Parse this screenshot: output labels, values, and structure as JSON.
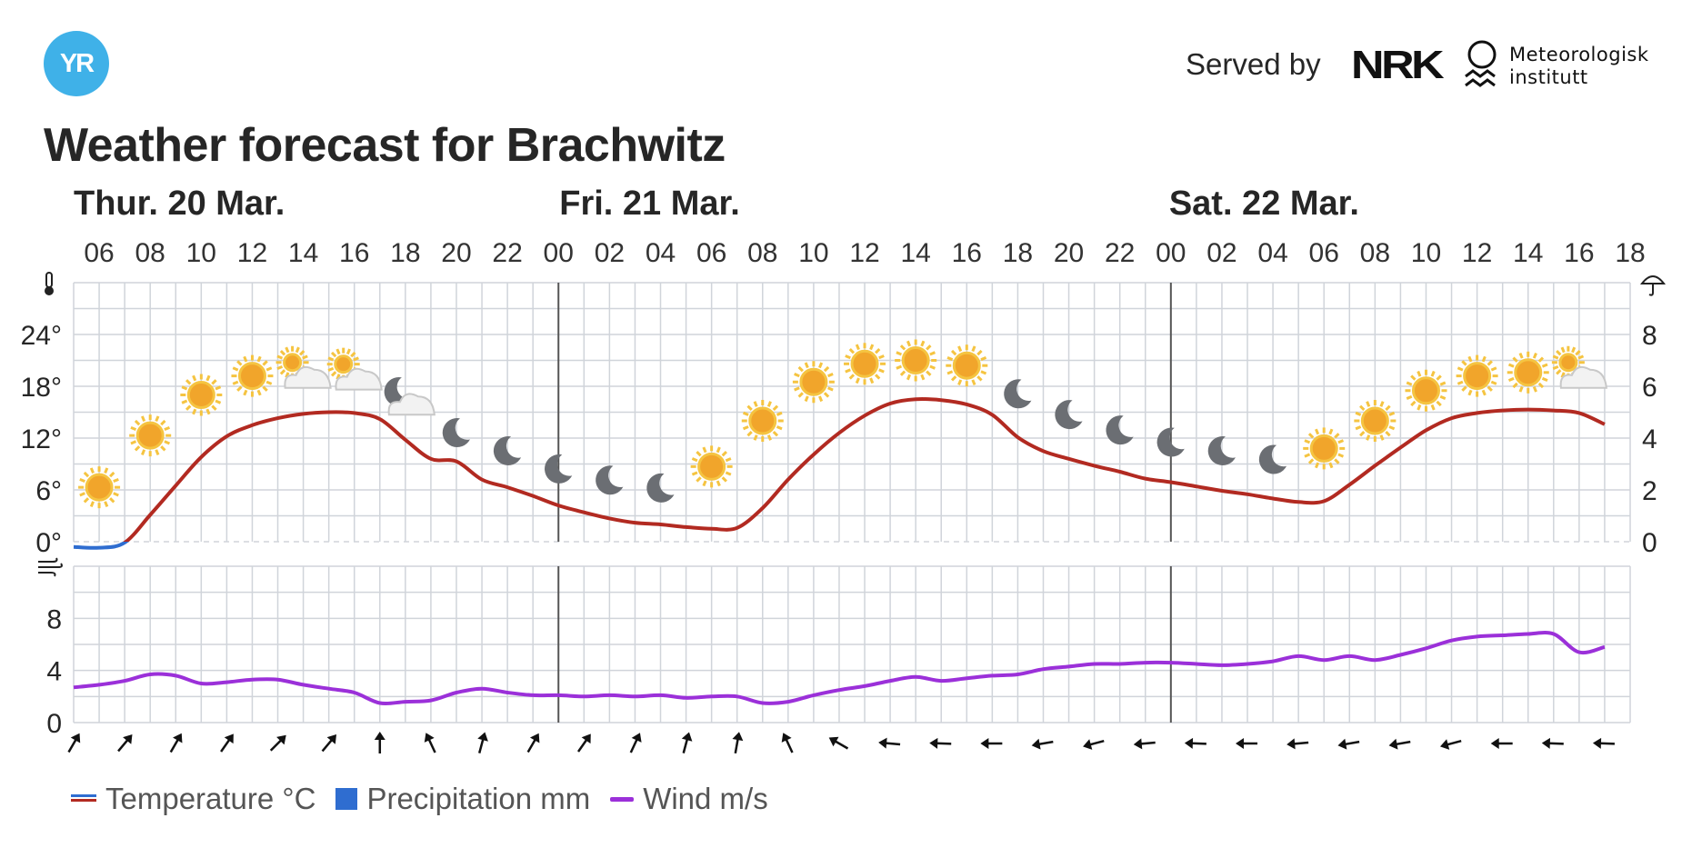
{
  "header": {
    "logo_text": "YR",
    "served_by": "Served by",
    "nrk_logo_text": "NRK",
    "met_logo_line1": "Meteorologisk",
    "met_logo_line2": "institutt"
  },
  "title": "Weather forecast for Brachwitz",
  "legend": {
    "temperature": "Temperature °C",
    "precipitation": "Precipitation mm",
    "wind": "Wind m/s"
  },
  "colors": {
    "temperature_warm": "#b22a21",
    "temperature_cold": "#2f6dd0",
    "precipitation": "#2f6dd0",
    "wind": "#9b30d9",
    "grid": "#d0d4da",
    "day_divider": "#555555"
  },
  "chart_data": {
    "type": "line",
    "hours_start": "Thur. 20 Mar. 05:00",
    "hours": 62,
    "days": [
      {
        "label": "Thur. 20 Mar.",
        "hour": 5
      },
      {
        "label": "Fri. 21 Mar.",
        "hour": 24
      },
      {
        "label": "Sat. 22 Mar.",
        "hour": 48
      }
    ],
    "x_tick_labels": [
      "06",
      "08",
      "10",
      "12",
      "14",
      "16",
      "18",
      "20",
      "22",
      "00",
      "02",
      "04",
      "06",
      "08",
      "10",
      "12",
      "14",
      "16",
      "18",
      "20",
      "22",
      "00",
      "02",
      "04",
      "06",
      "08",
      "10",
      "12",
      "14",
      "16",
      "18"
    ],
    "temperature": {
      "ylabel_icon": "thermometer-icon",
      "ylim": [
        0,
        30
      ],
      "ticks": [
        "0°",
        "6°",
        "12°",
        "18°",
        "24°"
      ],
      "values": [
        -0.6,
        -0.7,
        -0.1,
        3.1,
        6.5,
        9.8,
        12.2,
        13.5,
        14.3,
        14.8,
        15.0,
        14.9,
        14.2,
        11.8,
        9.6,
        9.3,
        7.2,
        6.3,
        5.3,
        4.2,
        3.4,
        2.7,
        2.2,
        2.0,
        1.7,
        1.5,
        1.6,
        3.9,
        7.2,
        10.1,
        12.6,
        14.6,
        16.0,
        16.5,
        16.4,
        15.9,
        14.7,
        12.1,
        10.5,
        9.6,
        8.8,
        8.1,
        7.3,
        6.9,
        6.4,
        5.9,
        5.5,
        5.0,
        4.6,
        4.7,
        6.6,
        8.8,
        10.9,
        12.9,
        14.3,
        14.9,
        15.2,
        15.3,
        15.2,
        14.9,
        13.6
      ]
    },
    "precipitation": {
      "ylabel_icon": "umbrella-icon",
      "ylim": [
        0,
        10
      ],
      "ticks": [
        "0",
        "2",
        "4",
        "6",
        "8"
      ],
      "values": []
    },
    "wind": {
      "ylabel_icon": "wind-icon",
      "ylim": [
        0,
        12
      ],
      "ticks": [
        "0",
        "4",
        "8"
      ],
      "values": [
        2.7,
        2.9,
        3.2,
        3.7,
        3.6,
        3.0,
        3.1,
        3.3,
        3.3,
        2.9,
        2.6,
        2.3,
        1.5,
        1.6,
        1.7,
        2.3,
        2.6,
        2.3,
        2.1,
        2.1,
        2.0,
        2.1,
        2.0,
        2.1,
        1.9,
        2.0,
        2.0,
        1.5,
        1.6,
        2.1,
        2.5,
        2.8,
        3.2,
        3.5,
        3.2,
        3.4,
        3.6,
        3.7,
        4.1,
        4.3,
        4.5,
        4.5,
        4.6,
        4.6,
        4.5,
        4.4,
        4.5,
        4.7,
        5.1,
        4.8,
        5.1,
        4.8,
        5.2,
        5.7,
        6.3,
        6.6,
        6.7,
        6.8,
        6.8,
        5.4,
        5.8
      ]
    },
    "symbols": [
      {
        "hour": 6,
        "icon": "sun",
        "temp": 6.3
      },
      {
        "hour": 7,
        "icon": "sun",
        "temp": 12.3
      },
      {
        "hour": 8,
        "icon": "sun",
        "temp": 17.0
      },
      {
        "hour": 9,
        "icon": "sun",
        "temp": 19.2
      },
      {
        "hour": 10,
        "icon": "partly-cloudy-day",
        "temp": 19.5
      },
      {
        "hour": 11,
        "icon": "partly-cloudy-day",
        "temp": 19.3
      },
      {
        "hour": 12,
        "icon": "partly-cloudy-night",
        "temp": 16.6
      },
      {
        "hour": 13,
        "icon": "moon",
        "temp": 12.7
      },
      {
        "hour": 14,
        "icon": "moon",
        "temp": 10.6
      },
      {
        "hour": 15,
        "icon": "moon",
        "temp": 8.5
      },
      {
        "hour": 16,
        "icon": "moon",
        "temp": 7.2
      },
      {
        "hour": 17,
        "icon": "moon",
        "temp": 6.3
      },
      {
        "hour": 18,
        "icon": "sun",
        "temp": 8.7
      },
      {
        "hour": 19,
        "icon": "sun",
        "temp": 14.0
      },
      {
        "hour": 20,
        "icon": "sun",
        "temp": 18.5
      },
      {
        "hour": 21,
        "icon": "sun",
        "temp": 20.6
      },
      {
        "hour": 22,
        "icon": "sun",
        "temp": 21.0
      },
      {
        "hour": 23,
        "icon": "sun",
        "temp": 20.4
      },
      {
        "hour": 24,
        "icon": "moon",
        "temp": 17.2
      },
      {
        "hour": 25,
        "icon": "moon",
        "temp": 14.8
      },
      {
        "hour": 26,
        "icon": "moon",
        "temp": 13.0
      },
      {
        "hour": 27,
        "icon": "moon",
        "temp": 11.6
      },
      {
        "hour": 28,
        "icon": "moon",
        "temp": 10.6
      },
      {
        "hour": 29,
        "icon": "moon",
        "temp": 9.6
      },
      {
        "hour": 30,
        "icon": "sun",
        "temp": 10.8
      },
      {
        "hour": 31,
        "icon": "sun",
        "temp": 14.0
      },
      {
        "hour": 32,
        "icon": "sun",
        "temp": 17.5
      },
      {
        "hour": 33,
        "icon": "sun",
        "temp": 19.2
      },
      {
        "hour": 34,
        "icon": "sun",
        "temp": 19.6
      },
      {
        "hour": 35,
        "icon": "partly-cloudy-day",
        "temp": 19.5
      }
    ],
    "wind_arrows": [
      {
        "hour": 0,
        "deg": 30
      },
      {
        "hour": 2,
        "deg": 40
      },
      {
        "hour": 4,
        "deg": 30
      },
      {
        "hour": 6,
        "deg": 35
      },
      {
        "hour": 8,
        "deg": 45
      },
      {
        "hour": 10,
        "deg": 40
      },
      {
        "hour": 12,
        "deg": 0
      },
      {
        "hour": 14,
        "deg": -25
      },
      {
        "hour": 16,
        "deg": 15
      },
      {
        "hour": 18,
        "deg": 30
      },
      {
        "hour": 20,
        "deg": 35
      },
      {
        "hour": 22,
        "deg": 25
      },
      {
        "hour": 24,
        "deg": 15
      },
      {
        "hour": 26,
        "deg": 10
      },
      {
        "hour": 28,
        "deg": -25
      },
      {
        "hour": 30,
        "deg": -60
      },
      {
        "hour": 32,
        "deg": -85
      },
      {
        "hour": 34,
        "deg": -88
      },
      {
        "hour": 36,
        "deg": -90
      },
      {
        "hour": 38,
        "deg": -100
      },
      {
        "hour": 40,
        "deg": -105
      },
      {
        "hour": 42,
        "deg": -95
      },
      {
        "hour": 44,
        "deg": -88
      },
      {
        "hour": 46,
        "deg": -90
      },
      {
        "hour": 48,
        "deg": -95
      },
      {
        "hour": 50,
        "deg": -100
      },
      {
        "hour": 52,
        "deg": -100
      },
      {
        "hour": 54,
        "deg": -105
      },
      {
        "hour": 56,
        "deg": -90
      },
      {
        "hour": 58,
        "deg": -88
      },
      {
        "hour": 60,
        "deg": -88
      }
    ]
  }
}
